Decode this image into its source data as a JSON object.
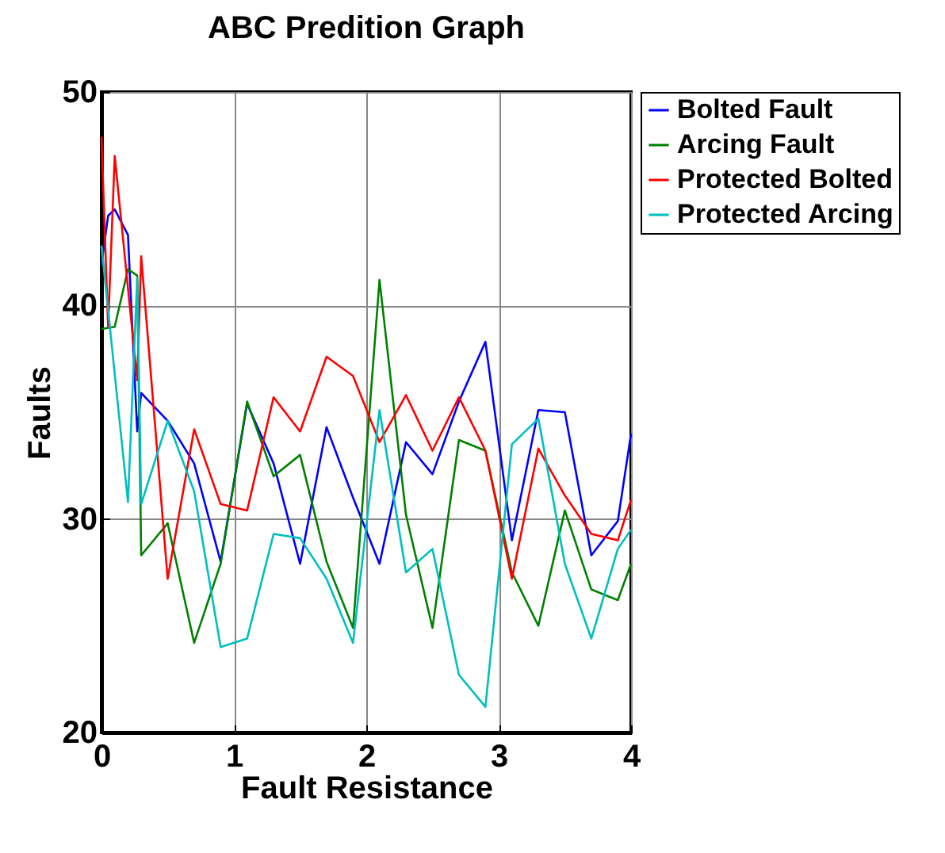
{
  "chart_data": {
    "type": "line",
    "title": "ABC Predition Graph",
    "xlabel": "Fault Resistance",
    "ylabel": "Faults",
    "xlim": [
      0,
      4
    ],
    "xticks": [
      0,
      1,
      2,
      3,
      4
    ],
    "ylim": [
      20,
      50
    ],
    "yticks": [
      20,
      30,
      40,
      50
    ],
    "grid": true,
    "legend": "top right",
    "marker": "none",
    "line_style": "solid",
    "series": [
      {
        "name": "Bolted Fault",
        "color": "#0000ff",
        "x": [
          0,
          0.05,
          0.1,
          0.2,
          0.27,
          0.3,
          0.5,
          0.7,
          0.9,
          1.1,
          1.3,
          1.5,
          1.7,
          1.9,
          2.1,
          2.3,
          2.5,
          2.7,
          2.9,
          3.1,
          3.3,
          3.5,
          3.7,
          3.9,
          4.0
        ],
        "values": [
          41.9,
          44.2,
          44.5,
          43.3,
          34.1,
          35.9,
          34.6,
          32.6,
          28.0,
          35.4,
          32.6,
          27.9,
          34.3,
          31.0,
          27.9,
          33.6,
          32.1,
          35.5,
          38.3,
          29.0,
          35.1,
          35.0,
          28.3,
          29.9,
          34.0
        ]
      },
      {
        "name": "Arcing Fault",
        "color": "#008000",
        "x": [
          0,
          0.1,
          0.2,
          0.27,
          0.3,
          0.5,
          0.7,
          0.9,
          1.1,
          1.3,
          1.5,
          1.7,
          1.9,
          2.1,
          2.3,
          2.5,
          2.7,
          2.9,
          3.1,
          3.3,
          3.5,
          3.7,
          3.9,
          4.0
        ],
        "values": [
          38.9,
          39.0,
          41.7,
          41.4,
          28.3,
          29.8,
          24.2,
          27.9,
          35.5,
          32.0,
          33.0,
          28.0,
          24.9,
          41.2,
          30.2,
          24.9,
          33.7,
          33.2,
          27.5,
          25.0,
          30.4,
          26.7,
          26.2,
          27.9
        ]
      },
      {
        "name": "Protected Bolted",
        "color": "#ff0000",
        "x": [
          0,
          0.05,
          0.1,
          0.27,
          0.3,
          0.5,
          0.7,
          0.9,
          1.1,
          1.3,
          1.5,
          1.7,
          1.9,
          2.1,
          2.3,
          2.5,
          2.7,
          2.9,
          3.1,
          3.3,
          3.5,
          3.7,
          3.9,
          4.0
        ],
        "values": [
          47.9,
          39.0,
          47.0,
          36.5,
          42.3,
          27.2,
          34.2,
          30.7,
          30.4,
          35.7,
          34.1,
          37.6,
          36.7,
          33.6,
          35.8,
          33.2,
          35.7,
          33.2,
          27.2,
          33.3,
          31.1,
          29.3,
          29.0,
          30.9
        ]
      },
      {
        "name": "Protected Arcing",
        "color": "#00bfbf",
        "x": [
          0,
          0.2,
          0.27,
          0.3,
          0.5,
          0.7,
          0.9,
          1.1,
          1.3,
          1.5,
          1.7,
          1.9,
          2.1,
          2.3,
          2.5,
          2.7,
          2.9,
          3.1,
          3.3,
          3.5,
          3.7,
          3.9,
          4.0
        ],
        "values": [
          42.8,
          30.8,
          41.3,
          30.7,
          34.6,
          31.3,
          24.0,
          24.4,
          29.3,
          29.1,
          27.2,
          24.2,
          35.1,
          27.5,
          28.6,
          22.7,
          21.2,
          33.5,
          34.7,
          27.9,
          24.4,
          28.6,
          29.5
        ]
      }
    ]
  }
}
